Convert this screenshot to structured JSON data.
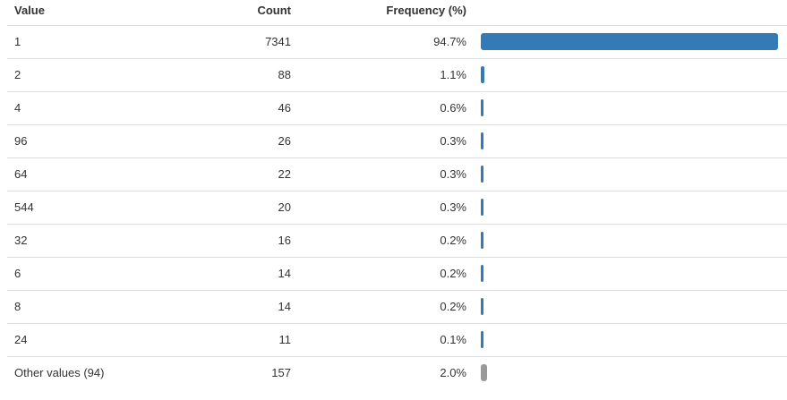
{
  "table": {
    "headers": {
      "value": "Value",
      "count": "Count",
      "frequency": "Frequency (%)"
    },
    "rows": [
      {
        "value": "1",
        "count": "7341",
        "frequency": "94.7%",
        "fraction": 0.947,
        "other": false
      },
      {
        "value": "2",
        "count": "88",
        "frequency": "1.1%",
        "fraction": 0.011,
        "other": false
      },
      {
        "value": "4",
        "count": "46",
        "frequency": "0.6%",
        "fraction": 0.006,
        "other": false
      },
      {
        "value": "96",
        "count": "26",
        "frequency": "0.3%",
        "fraction": 0.003,
        "other": false
      },
      {
        "value": "64",
        "count": "22",
        "frequency": "0.3%",
        "fraction": 0.003,
        "other": false
      },
      {
        "value": "544",
        "count": "20",
        "frequency": "0.3%",
        "fraction": 0.003,
        "other": false
      },
      {
        "value": "32",
        "count": "16",
        "frequency": "0.2%",
        "fraction": 0.002,
        "other": false
      },
      {
        "value": "6",
        "count": "14",
        "frequency": "0.2%",
        "fraction": 0.002,
        "other": false
      },
      {
        "value": "8",
        "count": "14",
        "frequency": "0.2%",
        "fraction": 0.002,
        "other": false
      },
      {
        "value": "24",
        "count": "11",
        "frequency": "0.1%",
        "fraction": 0.001,
        "other": false
      },
      {
        "value": "Other values (94)",
        "count": "157",
        "frequency": "2.0%",
        "fraction": 0.02,
        "other": true
      }
    ]
  },
  "colors": {
    "bar": "#337ab7",
    "other_bar": "#999999",
    "row_border": "#dddddd",
    "text": "#333333"
  }
}
